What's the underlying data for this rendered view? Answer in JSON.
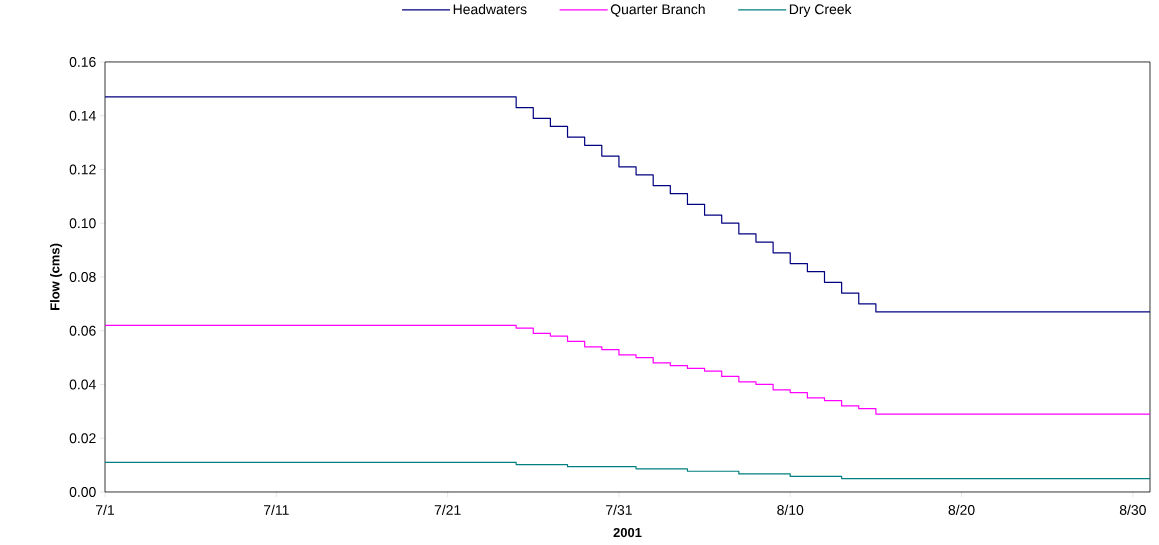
{
  "chart_data": {
    "type": "step",
    "xlabel": "2001",
    "ylabel": "Flow (cms)",
    "legend": "top",
    "x": [
      "2001-07-01",
      "2001-07-25",
      "2001-07-26",
      "2001-07-27",
      "2001-07-28",
      "2001-07-29",
      "2001-07-30",
      "2001-07-31",
      "2001-08-01",
      "2001-08-02",
      "2001-08-03",
      "2001-08-04",
      "2001-08-05",
      "2001-08-06",
      "2001-08-07",
      "2001-08-08",
      "2001-08-09",
      "2001-08-10",
      "2001-08-11",
      "2001-08-12",
      "2001-08-13",
      "2001-08-14",
      "2001-08-15",
      "2001-08-31"
    ],
    "series": [
      {
        "name": "Headwaters",
        "color": "#000080",
        "values": [
          0.147,
          0.143,
          0.139,
          0.136,
          0.132,
          0.129,
          0.125,
          0.121,
          0.118,
          0.114,
          0.111,
          0.107,
          0.103,
          0.1,
          0.096,
          0.093,
          0.089,
          0.085,
          0.082,
          0.078,
          0.074,
          0.07,
          0.067,
          0.067
        ]
      },
      {
        "name": "Quarter Branch",
        "color": "#ff00ff",
        "values": [
          0.062,
          0.061,
          0.059,
          0.058,
          0.056,
          0.054,
          0.053,
          0.051,
          0.05,
          0.048,
          0.047,
          0.046,
          0.045,
          0.043,
          0.041,
          0.04,
          0.038,
          0.037,
          0.035,
          0.034,
          0.032,
          0.031,
          0.029,
          0.029
        ]
      },
      {
        "name": "Dry Creek",
        "color": "#008080",
        "x": [
          "2001-07-01",
          "2001-07-25",
          "2001-07-28",
          "2001-08-01",
          "2001-08-04",
          "2001-08-07",
          "2001-08-10",
          "2001-08-13",
          "2001-08-31"
        ],
        "values": [
          0.011,
          0.0102,
          0.0094,
          0.0086,
          0.0077,
          0.0067,
          0.0058,
          0.005,
          0.005
        ]
      }
    ],
    "xlim": [
      "2001-07-01",
      "2001-08-31"
    ],
    "xticks": [
      {
        "value": "2001-07-01",
        "label": "7/1"
      },
      {
        "value": "2001-07-11",
        "label": "7/11"
      },
      {
        "value": "2001-07-21",
        "label": "7/21"
      },
      {
        "value": "2001-07-31",
        "label": "7/31"
      },
      {
        "value": "2001-08-10",
        "label": "8/10"
      },
      {
        "value": "2001-08-20",
        "label": "8/20"
      },
      {
        "value": "2001-08-30",
        "label": "8/30"
      }
    ],
    "ylim": [
      0,
      0.16
    ],
    "yticks": [
      {
        "value": 0,
        "label": "0.00"
      },
      0.02,
      0.04,
      0.06,
      0.08,
      {
        "value": 0.1,
        "label": "0.10"
      },
      0.12,
      0.14,
      0.16
    ]
  }
}
